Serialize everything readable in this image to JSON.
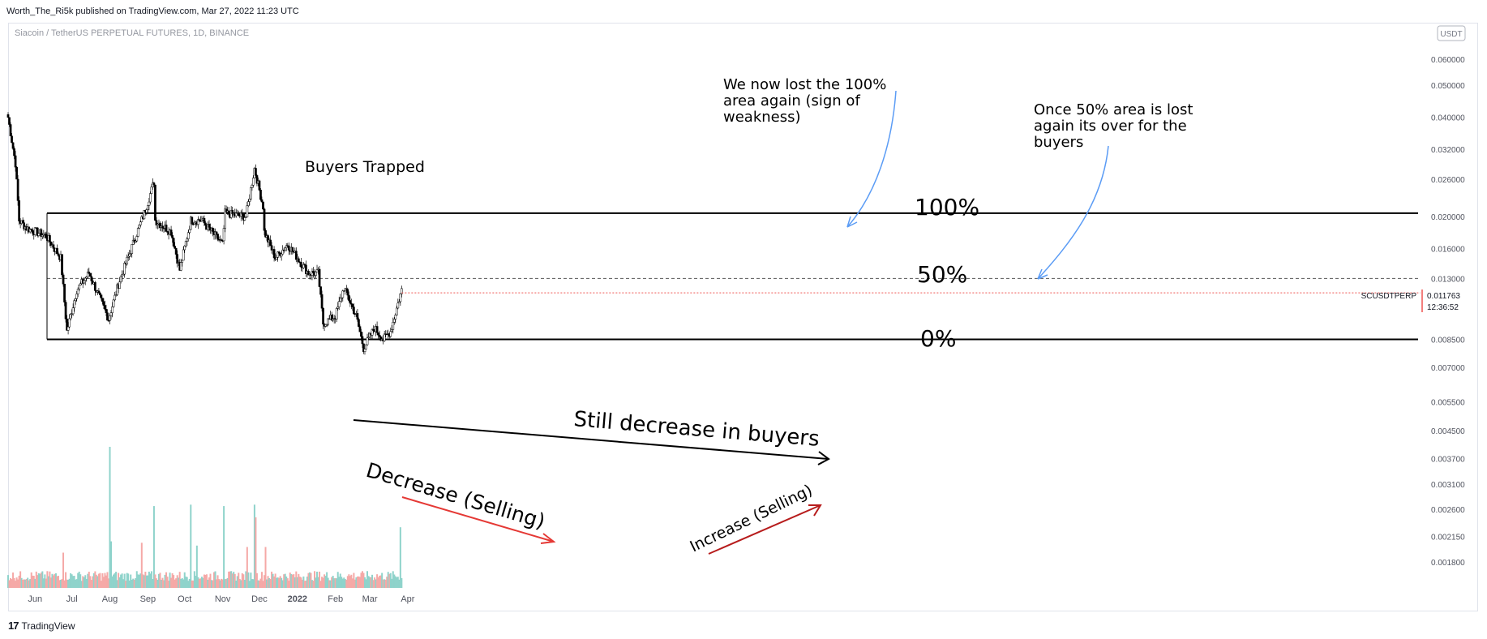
{
  "publish": {
    "text": "Worth_The_Ri5k published on TradingView.com, Mar 27, 2022 11:23 UTC"
  },
  "symbol_info": "Siacoin / TetherUS PERPETUAL FUTURES, 1D, BINANCE",
  "currency_badge": "USDT",
  "footer": {
    "logo": "17",
    "brand": "TradingView"
  },
  "price_tag": {
    "symbol": "SCUSDTPERP",
    "price": "0.011763",
    "countdown": "12:36:52",
    "color": "#ef5350"
  },
  "colors": {
    "up": "#26a69a",
    "down": "#ef5350",
    "vol_up": "#8fd3cb",
    "vol_down": "#f5a9a7",
    "arrow_blue": "#5b9cf5",
    "arrow_red": "#e53935",
    "axis_text": "#50535e"
  },
  "annotations": {
    "buyers_trapped": "Buyers Trapped",
    "lost_100": [
      "We now lost the 100%",
      "area again (sign of",
      "weakness)"
    ],
    "lost_50": [
      "Once 50% area is lost",
      "again its over for the",
      "buyers"
    ],
    "level_100": "100%",
    "level_50": "50%",
    "level_0": "0%",
    "still_decrease": "Still decrease in buyers",
    "decrease_selling": "Decrease (Selling)",
    "increase_selling": "Increase (Selling)"
  },
  "chart_data": {
    "type": "candlestick",
    "title": "Siacoin / TetherUS PERPETUAL FUTURES, 1D, BINANCE",
    "scale": "log",
    "ylim": [
      0.0015,
      0.085
    ],
    "y_ticks": [
      "0.060000",
      "0.050000",
      "0.040000",
      "0.032000",
      "0.026000",
      "0.020000",
      "0.016000",
      "0.013000",
      "0.008500",
      "0.007000",
      "0.005500",
      "0.004500",
      "0.003700",
      "0.003100",
      "0.002600",
      "0.002150",
      "0.001800"
    ],
    "x_ticks": [
      "Jun",
      "Jul",
      "Aug",
      "Sep",
      "Oct",
      "Nov",
      "Dec",
      "2022",
      "Feb",
      "Mar",
      "Apr"
    ],
    "date_range": [
      "2021-05-10",
      "2022-03-27"
    ],
    "levels": [
      {
        "label": "100%",
        "price": 0.0205
      },
      {
        "label": "50%",
        "price": 0.013
      },
      {
        "label": "0%",
        "price": 0.0085
      }
    ],
    "close_series": {
      "anchors": [
        [
          "2021-05-10",
          0.04
        ],
        [
          "2021-05-16",
          0.029
        ],
        [
          "2021-05-19",
          0.0195
        ],
        [
          "2021-05-25",
          0.0185
        ],
        [
          "2021-06-10",
          0.0175
        ],
        [
          "2021-06-22",
          0.015
        ],
        [
          "2021-06-27",
          0.009
        ],
        [
          "2021-07-05",
          0.012
        ],
        [
          "2021-07-15",
          0.0135
        ],
        [
          "2021-07-31",
          0.0098
        ],
        [
          "2021-08-08",
          0.0125
        ],
        [
          "2021-08-30",
          0.021
        ],
        [
          "2021-09-06",
          0.0255
        ],
        [
          "2021-09-07",
          0.0195
        ],
        [
          "2021-09-20",
          0.018
        ],
        [
          "2021-09-27",
          0.0138
        ],
        [
          "2021-10-06",
          0.0195
        ],
        [
          "2021-10-15",
          0.0195
        ],
        [
          "2021-11-01",
          0.0165
        ],
        [
          "2021-11-03",
          0.0205
        ],
        [
          "2021-11-20",
          0.02
        ],
        [
          "2021-11-27",
          0.028
        ],
        [
          "2021-12-04",
          0.0215
        ],
        [
          "2021-12-05",
          0.018
        ],
        [
          "2021-12-14",
          0.015
        ],
        [
          "2021-12-24",
          0.0165
        ],
        [
          "2022-01-10",
          0.0135
        ],
        [
          "2022-01-18",
          0.0135
        ],
        [
          "2022-01-22",
          0.0095
        ],
        [
          "2022-02-01",
          0.01
        ],
        [
          "2022-02-08",
          0.0122
        ],
        [
          "2022-02-18",
          0.01
        ],
        [
          "2022-02-24",
          0.008
        ],
        [
          "2022-03-05",
          0.0092
        ],
        [
          "2022-03-12",
          0.0085
        ],
        [
          "2022-03-18",
          0.009
        ],
        [
          "2022-03-27",
          0.012
        ]
      ]
    },
    "volume_spikes": [
      {
        "date": "2021-06-24",
        "rel": 0.25,
        "side": "down"
      },
      {
        "date": "2021-08-01",
        "rel": 1.0,
        "side": "up"
      },
      {
        "date": "2021-08-02",
        "rel": 0.33,
        "side": "up"
      },
      {
        "date": "2021-08-27",
        "rel": 0.32,
        "side": "down"
      },
      {
        "date": "2021-09-06",
        "rel": 0.58,
        "side": "up"
      },
      {
        "date": "2021-10-06",
        "rel": 0.59,
        "side": "up"
      },
      {
        "date": "2021-10-11",
        "rel": 0.3,
        "side": "up"
      },
      {
        "date": "2021-11-02",
        "rel": 0.58,
        "side": "up"
      },
      {
        "date": "2021-11-21",
        "rel": 0.29,
        "side": "down"
      },
      {
        "date": "2021-11-27",
        "rel": 0.59,
        "side": "up"
      },
      {
        "date": "2021-11-28",
        "rel": 0.5,
        "side": "down"
      },
      {
        "date": "2021-12-06",
        "rel": 0.29,
        "side": "down"
      },
      {
        "date": "2022-03-26",
        "rel": 0.43,
        "side": "up"
      }
    ]
  }
}
